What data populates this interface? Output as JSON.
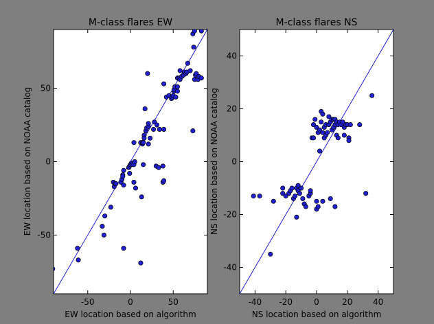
{
  "chart_data": [
    {
      "type": "scatter",
      "title": "M-class flares EW",
      "xlabel": "EW location based on algorithm",
      "ylabel": "EW location based on NOAA catalog",
      "xlim": [
        -90,
        90
      ],
      "ylim": [
        -90,
        90
      ],
      "xticks": [
        "-50",
        "0",
        "50"
      ],
      "yticks": [
        "-50",
        "0",
        "50"
      ],
      "xtick_values": [
        -50,
        0,
        50
      ],
      "ytick_values": [
        -50,
        0,
        50
      ],
      "reference_line": "y = x",
      "marker_color": "#2020d0",
      "line_color": "#2020d0",
      "points": [
        [
          -91,
          -73
        ],
        [
          -62,
          -59
        ],
        [
          -61,
          -67
        ],
        [
          -33,
          -44
        ],
        [
          -31,
          -50
        ],
        [
          -30,
          -37
        ],
        [
          -23,
          -31
        ],
        [
          -20,
          -14
        ],
        [
          -19,
          -17
        ],
        [
          -18,
          -15
        ],
        [
          -17,
          -15
        ],
        [
          -11,
          -14
        ],
        [
          -10,
          -12
        ],
        [
          -9,
          -9
        ],
        [
          -9,
          -10
        ],
        [
          -8,
          -6
        ],
        [
          -8,
          -16
        ],
        [
          -8,
          -59
        ],
        [
          -1,
          -8
        ],
        [
          -2,
          -4
        ],
        [
          -1,
          -3
        ],
        [
          0,
          -2
        ],
        [
          1,
          -1
        ],
        [
          2,
          -2
        ],
        [
          4,
          -2
        ],
        [
          5,
          0
        ],
        [
          4,
          13
        ],
        [
          4,
          -14
        ],
        [
          6,
          -18
        ],
        [
          12,
          13
        ],
        [
          13,
          -24
        ],
        [
          14,
          12
        ],
        [
          12,
          -69
        ],
        [
          14,
          13
        ],
        [
          15,
          -2
        ],
        [
          15,
          13
        ],
        [
          16,
          18
        ],
        [
          16,
          16
        ],
        [
          18,
          21
        ],
        [
          17,
          36
        ],
        [
          19,
          23
        ],
        [
          20,
          60
        ],
        [
          21,
          12
        ],
        [
          21,
          24
        ],
        [
          21,
          26
        ],
        [
          23,
          16
        ],
        [
          27,
          22
        ],
        [
          28,
          27
        ],
        [
          30,
          -3
        ],
        [
          31,
          25
        ],
        [
          33,
          -4
        ],
        [
          34,
          22
        ],
        [
          38,
          -14
        ],
        [
          38,
          -3
        ],
        [
          39,
          22
        ],
        [
          39,
          53
        ],
        [
          39,
          -13
        ],
        [
          42,
          44
        ],
        [
          45,
          45
        ],
        [
          48,
          43
        ],
        [
          49,
          44
        ],
        [
          50,
          45
        ],
        [
          51,
          48
        ],
        [
          51,
          49
        ],
        [
          52,
          51
        ],
        [
          53,
          44
        ],
        [
          55,
          48
        ],
        [
          55,
          51
        ],
        [
          55,
          57
        ],
        [
          57,
          57
        ],
        [
          58,
          56
        ],
        [
          58,
          62
        ],
        [
          60,
          58
        ],
        [
          62,
          59
        ],
        [
          63,
          61
        ],
        [
          65,
          60
        ],
        [
          66,
          61
        ],
        [
          67,
          67
        ],
        [
          70,
          62
        ],
        [
          73,
          21
        ],
        [
          73,
          87
        ],
        [
          74,
          78
        ],
        [
          75,
          89
        ],
        [
          75,
          56
        ],
        [
          76,
          59
        ],
        [
          77,
          60
        ],
        [
          79,
          56
        ],
        [
          80,
          58
        ],
        [
          83,
          89
        ],
        [
          83,
          57
        ],
        [
          90,
          91
        ]
      ]
    },
    {
      "type": "scatter",
      "title": "M-class flares NS",
      "xlabel": "NS location based on algorithm",
      "ylabel": "NS location based on NOAA catalog",
      "xlim": [
        -50,
        50
      ],
      "ylim": [
        -50,
        50
      ],
      "xticks": [
        "-40",
        "-20",
        "0",
        "20",
        "40"
      ],
      "yticks": [
        "-40",
        "-20",
        "0",
        "20",
        "40"
      ],
      "xtick_values": [
        -40,
        -20,
        0,
        20,
        40
      ],
      "ytick_values": [
        -40,
        -20,
        0,
        20,
        40
      ],
      "reference_line": "y = x",
      "marker_color": "#2020d0",
      "line_color": "#2020d0",
      "points": [
        [
          -41,
          -13
        ],
        [
          -37,
          -13
        ],
        [
          -28,
          -15
        ],
        [
          -30,
          -35
        ],
        [
          -22,
          -12
        ],
        [
          -22,
          -10
        ],
        [
          -20,
          -13
        ],
        [
          -18,
          -12
        ],
        [
          -17,
          -11
        ],
        [
          -16,
          -10
        ],
        [
          -15,
          -14
        ],
        [
          -14,
          -13
        ],
        [
          -13,
          -10
        ],
        [
          -12,
          -11
        ],
        [
          -12,
          -9
        ],
        [
          -11,
          -12
        ],
        [
          -10,
          -10
        ],
        [
          -9,
          -14
        ],
        [
          -8,
          -16
        ],
        [
          -13,
          -21
        ],
        [
          -7,
          -17
        ],
        [
          -5,
          -13
        ],
        [
          -4,
          -12
        ],
        [
          -4,
          -11
        ],
        [
          -3,
          9
        ],
        [
          -2,
          14
        ],
        [
          -2,
          9
        ],
        [
          -1,
          16
        ],
        [
          0,
          13
        ],
        [
          0,
          -15
        ],
        [
          0,
          -18
        ],
        [
          1,
          -17
        ],
        [
          1,
          11
        ],
        [
          2,
          4
        ],
        [
          2,
          12
        ],
        [
          3,
          15
        ],
        [
          3,
          19
        ],
        [
          4,
          18
        ],
        [
          4,
          -15
        ],
        [
          4,
          11
        ],
        [
          5,
          13
        ],
        [
          5,
          9
        ],
        [
          6,
          10
        ],
        [
          6,
          14
        ],
        [
          7,
          11
        ],
        [
          8,
          14
        ],
        [
          8,
          17
        ],
        [
          9,
          15
        ],
        [
          9,
          -14
        ],
        [
          10,
          16
        ],
        [
          10,
          12
        ],
        [
          11,
          16
        ],
        [
          11,
          13
        ],
        [
          12,
          14
        ],
        [
          12,
          16
        ],
        [
          12,
          -17
        ],
        [
          13,
          10
        ],
        [
          13,
          15
        ],
        [
          14,
          14
        ],
        [
          14,
          9
        ],
        [
          15,
          15
        ],
        [
          16,
          14
        ],
        [
          17,
          15
        ],
        [
          18,
          13
        ],
        [
          18,
          10
        ],
        [
          19,
          14
        ],
        [
          20,
          14
        ],
        [
          21,
          9
        ],
        [
          21,
          8
        ],
        [
          22,
          14
        ],
        [
          28,
          14
        ],
        [
          32,
          -12
        ],
        [
          36,
          25
        ]
      ]
    }
  ]
}
